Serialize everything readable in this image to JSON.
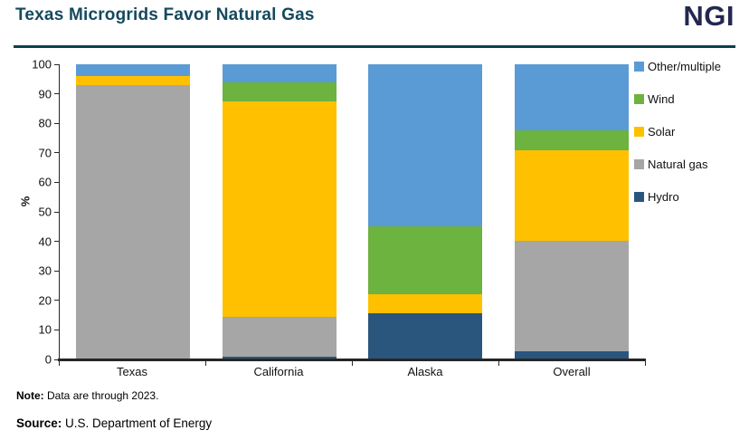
{
  "header": {
    "title": "Texas Microgrids Favor Natural Gas",
    "logo": "NGI"
  },
  "chart_data": {
    "type": "bar",
    "stacked": true,
    "title": "Texas Microgrids Favor Natural Gas",
    "categories": [
      "Texas",
      "California",
      "Alaska",
      "Overall"
    ],
    "series": [
      {
        "name": "Hydro",
        "color": "#2a567e",
        "values": [
          0,
          1,
          15.5,
          2.7
        ]
      },
      {
        "name": "Natural gas",
        "color": "#a6a6a6",
        "values": [
          93,
          13.5,
          0,
          37.6
        ]
      },
      {
        "name": "Solar",
        "color": "#ffc000",
        "values": [
          3,
          73,
          6.5,
          30.7
        ]
      },
      {
        "name": "Wind",
        "color": "#6cb33f",
        "values": [
          0,
          6.5,
          23,
          6.5
        ]
      },
      {
        "name": "Other/multiple",
        "color": "#5b9bd5",
        "values": [
          4,
          6,
          55,
          22.5
        ]
      }
    ],
    "xlabel": "",
    "ylabel": "%",
    "ylim": [
      0,
      100
    ],
    "yticks": [
      0,
      10,
      20,
      30,
      40,
      50,
      60,
      70,
      80,
      90,
      100
    ],
    "grid": false,
    "legend_position": "right",
    "legend_order": [
      "Other/multiple",
      "Wind",
      "Solar",
      "Natural gas",
      "Hydro"
    ]
  },
  "footer": {
    "note_label": "Note:",
    "note_text": " Data are through 2023.",
    "source_label": "Source:",
    "source_text": " U.S. Department of Energy"
  }
}
